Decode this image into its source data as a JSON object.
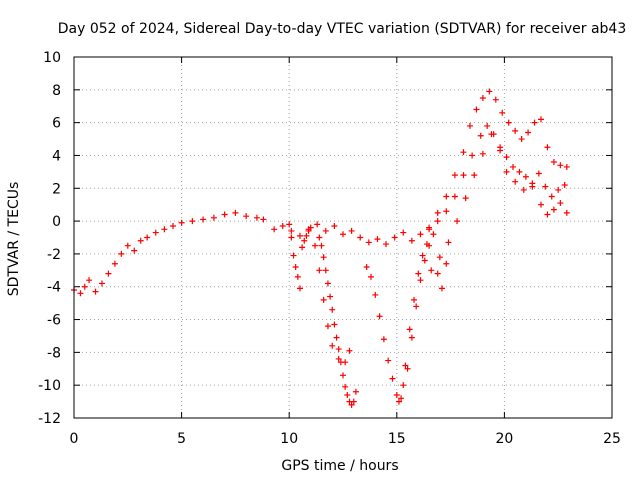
{
  "chart_data": {
    "type": "scatter",
    "title": "Day 052 of 2024, Sidereal Day-to-day VTEC variation (SDTVAR) for receiver ab43",
    "xlabel": "GPS time / hours",
    "ylabel": "SDTVAR / TECUs",
    "xlim": [
      0,
      25
    ],
    "ylim": [
      -12,
      10
    ],
    "xticks": [
      "0",
      "5",
      "10",
      "15",
      "20",
      "25"
    ],
    "yticks": [
      "10",
      "8",
      "6",
      "4",
      "2",
      "0",
      "-2",
      "-4",
      "-6",
      "-8",
      "-10",
      "-12"
    ],
    "grid": true,
    "marker": "+",
    "colors": {
      "series": "#ff0000",
      "axis": "#000000",
      "grid": "#a0a0a0"
    },
    "series": [
      {
        "name": "main-trace",
        "x": [
          0.0,
          0.3,
          0.5,
          0.7,
          1.0,
          1.3,
          1.6,
          1.9,
          2.2,
          2.5,
          2.8,
          3.1,
          3.4,
          3.8,
          4.2,
          4.6,
          5.0,
          5.5,
          6.0,
          6.5,
          7.0,
          7.5,
          8.0,
          8.5,
          8.8,
          9.3,
          9.7,
          10.1,
          10.5,
          10.9,
          11.3,
          11.7,
          12.1,
          12.5,
          12.9,
          13.3,
          13.7,
          14.1,
          14.5,
          14.9,
          15.3,
          15.7,
          16.1,
          16.5,
          16.9,
          17.3,
          17.7,
          18.1,
          18.5,
          18.9,
          19.2,
          19.5,
          19.8,
          20.1,
          20.4,
          20.7,
          21.0,
          21.3,
          21.6,
          21.9,
          22.2,
          22.5,
          22.8
        ],
        "y": [
          -4.2,
          -4.4,
          -4.0,
          -3.6,
          -4.3,
          -3.8,
          -3.2,
          -2.6,
          -2.0,
          -1.5,
          -1.8,
          -1.2,
          -1.0,
          -0.7,
          -0.5,
          -0.3,
          -0.1,
          0.0,
          0.1,
          0.2,
          0.4,
          0.5,
          0.3,
          0.2,
          0.1,
          -0.5,
          -0.3,
          -0.6,
          -0.9,
          -0.5,
          -0.2,
          -0.6,
          -0.3,
          -0.8,
          -0.6,
          -1.0,
          -1.3,
          -1.1,
          -1.4,
          -1.0,
          -0.7,
          -1.2,
          -0.8,
          -0.4,
          0.0,
          0.6,
          1.5,
          2.8,
          4.0,
          5.2,
          5.8,
          5.3,
          4.5,
          3.9,
          3.3,
          3.0,
          2.7,
          2.3,
          2.9,
          2.1,
          1.5,
          1.9,
          2.2
        ]
      },
      {
        "name": "upper-branch",
        "x": [
          16.5,
          16.9,
          17.3,
          17.7,
          18.1,
          18.4,
          18.7,
          19.0,
          19.3,
          19.6,
          19.9,
          20.2,
          20.5,
          20.8,
          21.1,
          21.4,
          21.7,
          22.0,
          22.3,
          22.6,
          22.9
        ],
        "y": [
          -0.5,
          0.5,
          1.5,
          2.8,
          4.2,
          5.8,
          6.8,
          7.5,
          7.9,
          7.4,
          6.6,
          6.0,
          5.5,
          5.0,
          5.4,
          6.0,
          6.2,
          4.5,
          3.6,
          3.4,
          3.3
        ]
      },
      {
        "name": "lower-branch",
        "x": [
          17.0,
          17.4,
          17.8,
          18.2,
          18.6,
          19.0,
          19.4,
          19.8,
          20.1,
          20.5,
          20.9,
          21.3,
          21.7,
          22.0,
          22.3,
          22.6,
          22.9
        ],
        "y": [
          -2.2,
          -1.3,
          0.0,
          1.4,
          2.8,
          4.1,
          5.3,
          4.3,
          3.0,
          2.4,
          1.9,
          2.1,
          1.0,
          0.4,
          0.7,
          1.1,
          0.5
        ]
      },
      {
        "name": "dip-10h",
        "x": [
          10.0,
          10.1,
          10.2,
          10.3,
          10.4,
          10.5,
          10.6,
          10.7,
          10.8,
          10.9,
          11.0,
          11.2,
          11.4,
          11.6,
          11.8,
          12.0,
          12.3,
          12.6,
          12.8
        ],
        "y": [
          -0.2,
          -1.0,
          -2.1,
          -2.8,
          -3.4,
          -4.1,
          -1.6,
          -1.2,
          -0.9,
          -0.6,
          -0.4,
          -1.5,
          -3.0,
          -4.8,
          -6.4,
          -7.6,
          -8.4,
          -8.6,
          -7.9
        ]
      },
      {
        "name": "dip-11h",
        "x": [
          11.4,
          11.5,
          11.6,
          11.7,
          11.8,
          11.9,
          12.0,
          12.1,
          12.2,
          12.3,
          12.4,
          12.5,
          12.6,
          12.7,
          12.8,
          12.9,
          13.0,
          13.1
        ],
        "y": [
          -1.0,
          -1.5,
          -2.2,
          -3.0,
          -3.8,
          -4.6,
          -5.4,
          -6.3,
          -7.1,
          -7.8,
          -8.6,
          -9.4,
          -10.1,
          -10.6,
          -11.0,
          -11.2,
          -11.0,
          -10.4
        ]
      },
      {
        "name": "dip-14h",
        "x": [
          13.6,
          13.8,
          14.0,
          14.2,
          14.4,
          14.6,
          14.8,
          15.0,
          15.1,
          15.2,
          15.3,
          15.4,
          15.6,
          15.8,
          16.0,
          16.2,
          16.4,
          16.6
        ],
        "y": [
          -2.8,
          -3.4,
          -4.5,
          -5.8,
          -7.2,
          -8.5,
          -9.6,
          -10.6,
          -11.0,
          -10.8,
          -10.0,
          -8.8,
          -6.6,
          -4.8,
          -3.2,
          -2.1,
          -1.4,
          -3.0
        ]
      },
      {
        "name": "dip-15h",
        "x": [
          15.5,
          15.7,
          15.9,
          16.1,
          16.3,
          16.5,
          16.7,
          16.9,
          17.1,
          17.3
        ],
        "y": [
          -9.0,
          -7.1,
          -5.2,
          -3.6,
          -2.4,
          -1.5,
          -0.8,
          -3.2,
          -4.1,
          -2.6
        ]
      }
    ]
  }
}
